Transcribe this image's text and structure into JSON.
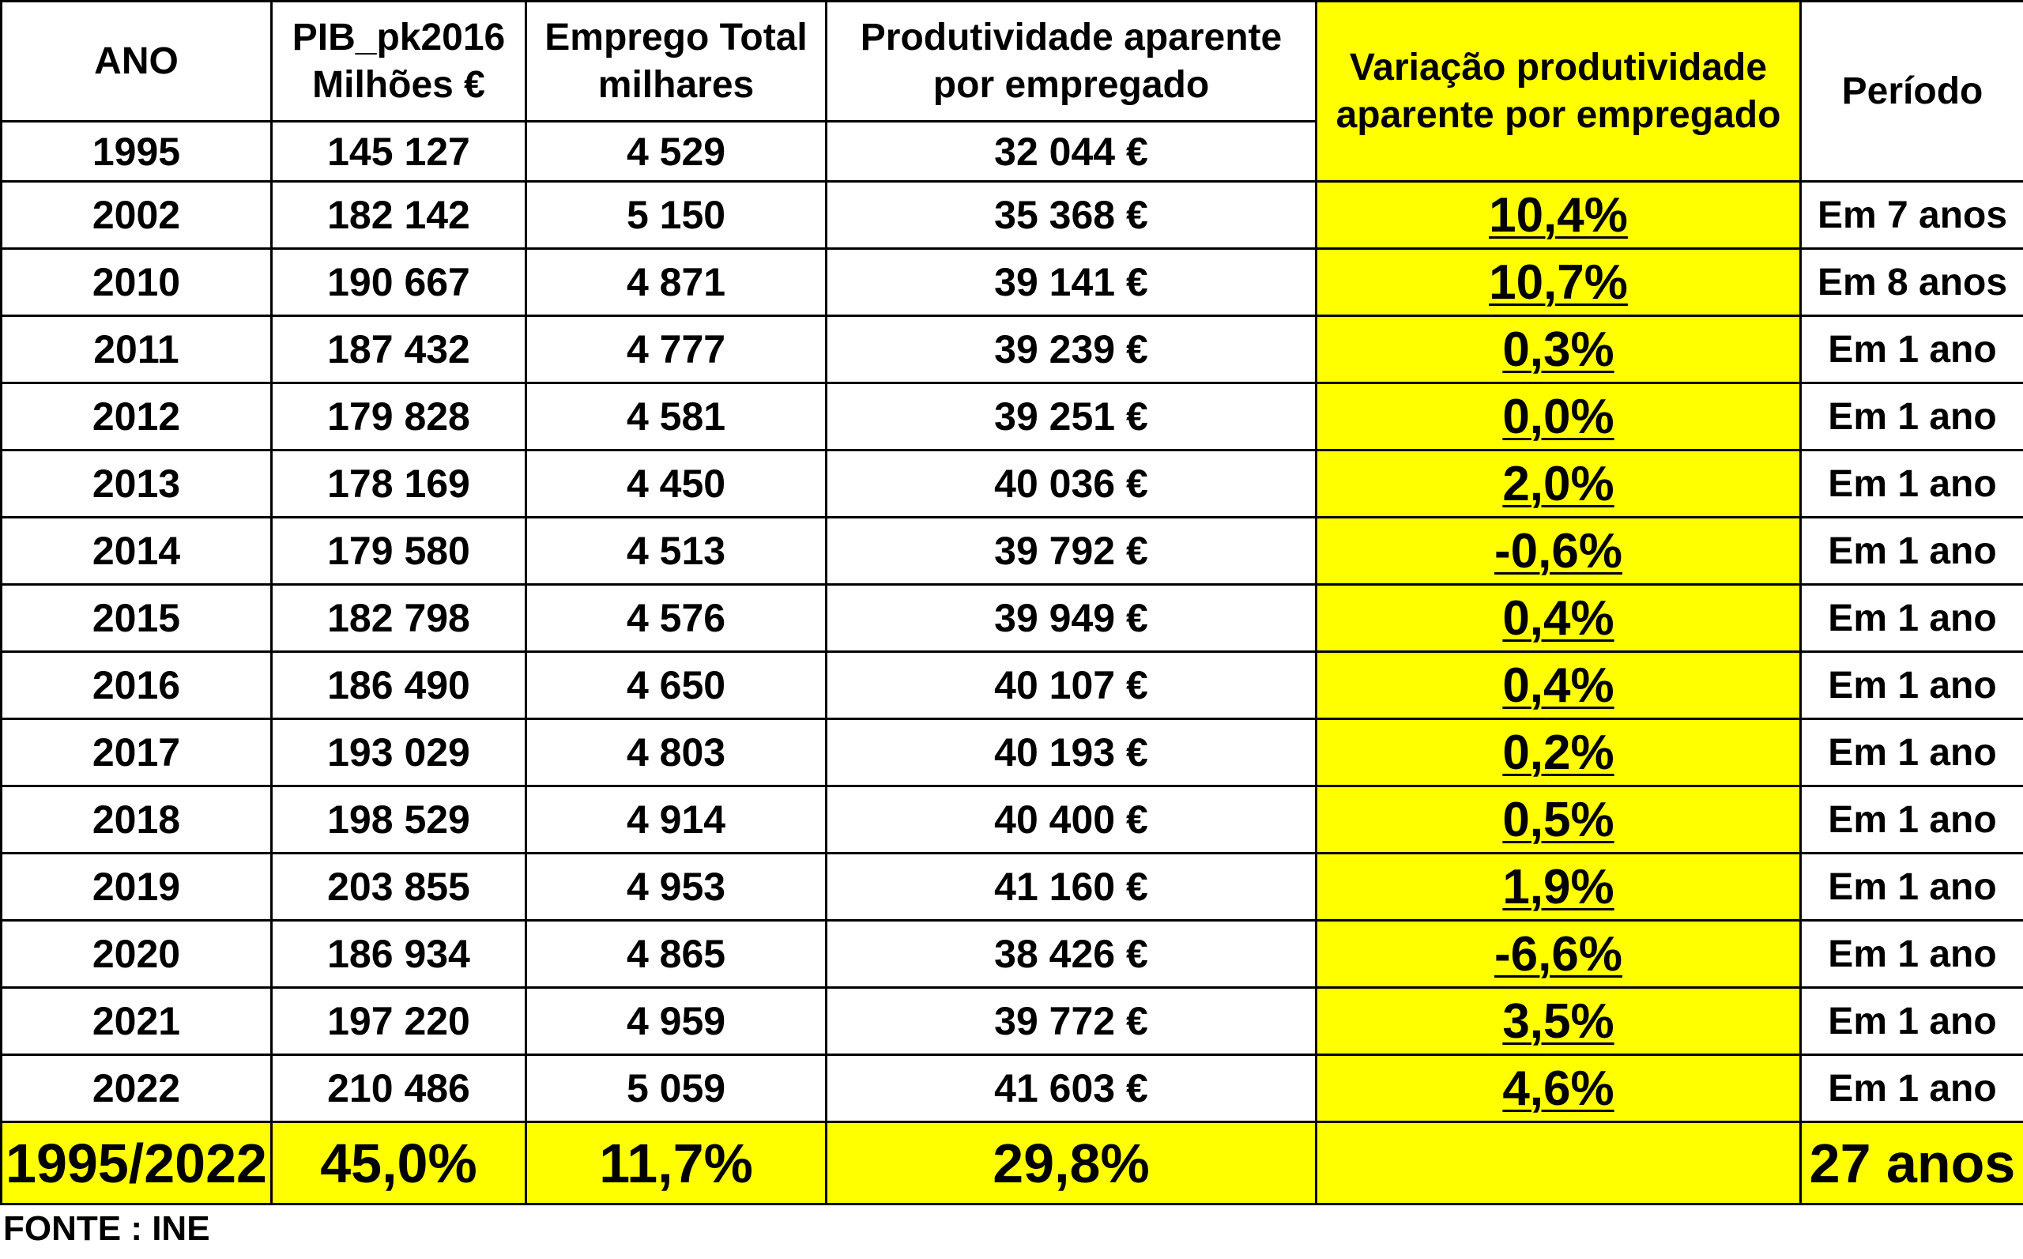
{
  "headers": {
    "ano": "ANO",
    "pib_line1": "PIB_pk2016",
    "pib_line2": "Milhões €",
    "emprego_line1": "Emprego Total",
    "emprego_line2": "milhares",
    "prod_line1": "Produtividade aparente",
    "prod_line2": "por empregado",
    "var_line1": "Variação produtividade",
    "var_line2": "aparente por empregado",
    "periodo": "Período"
  },
  "first_row": {
    "ano": "1995",
    "pib": "145 127",
    "emprego": "4 529",
    "produtividade": "32 044 €"
  },
  "rows": [
    {
      "ano": "2002",
      "pib": "182 142",
      "emprego": "5 150",
      "produtividade": "35 368 €",
      "variacao": "10,4%",
      "periodo": "Em 7 anos"
    },
    {
      "ano": "2010",
      "pib": "190 667",
      "emprego": "4 871",
      "produtividade": "39 141 €",
      "variacao": "10,7%",
      "periodo": "Em 8 anos"
    },
    {
      "ano": "2011",
      "pib": "187 432",
      "emprego": "4 777",
      "produtividade": "39 239 €",
      "variacao": "0,3%",
      "periodo": "Em 1 ano"
    },
    {
      "ano": "2012",
      "pib": "179 828",
      "emprego": "4 581",
      "produtividade": "39 251 €",
      "variacao": "0,0%",
      "periodo": "Em 1 ano"
    },
    {
      "ano": "2013",
      "pib": "178 169",
      "emprego": "4 450",
      "produtividade": "40 036 €",
      "variacao": "2,0%",
      "periodo": "Em 1 ano"
    },
    {
      "ano": "2014",
      "pib": "179 580",
      "emprego": "4 513",
      "produtividade": "39 792 €",
      "variacao": "-0,6%",
      "periodo": "Em 1 ano"
    },
    {
      "ano": "2015",
      "pib": "182 798",
      "emprego": "4 576",
      "produtividade": "39 949 €",
      "variacao": "0,4%",
      "periodo": "Em 1 ano"
    },
    {
      "ano": "2016",
      "pib": "186 490",
      "emprego": "4 650",
      "produtividade": "40 107 €",
      "variacao": "0,4%",
      "periodo": "Em 1 ano"
    },
    {
      "ano": "2017",
      "pib": "193 029",
      "emprego": "4 803",
      "produtividade": "40 193 €",
      "variacao": "0,2%",
      "periodo": "Em 1 ano"
    },
    {
      "ano": "2018",
      "pib": "198 529",
      "emprego": "4 914",
      "produtividade": "40 400 €",
      "variacao": "0,5%",
      "periodo": "Em 1 ano"
    },
    {
      "ano": "2019",
      "pib": "203 855",
      "emprego": "4 953",
      "produtividade": "41 160 €",
      "variacao": "1,9%",
      "periodo": "Em 1 ano"
    },
    {
      "ano": "2020",
      "pib": "186 934",
      "emprego": "4 865",
      "produtividade": "38 426 €",
      "variacao": "-6,6%",
      "periodo": "Em 1 ano"
    },
    {
      "ano": "2021",
      "pib": "197 220",
      "emprego": "4 959",
      "produtividade": "39 772 €",
      "variacao": "3,5%",
      "periodo": "Em 1 ano"
    },
    {
      "ano": "2022",
      "pib": "210 486",
      "emprego": "5 059",
      "produtividade": "41 603 €",
      "variacao": "4,6%",
      "periodo": "Em 1 ano"
    }
  ],
  "total": {
    "ano": "1995/2022",
    "pib": "45,0%",
    "emprego": "11,7%",
    "produtividade": "29,8%",
    "variacao": "",
    "periodo": "27 anos"
  },
  "source": "FONTE : INE",
  "colors": {
    "highlight": "#ffff00",
    "border": "#000000"
  }
}
